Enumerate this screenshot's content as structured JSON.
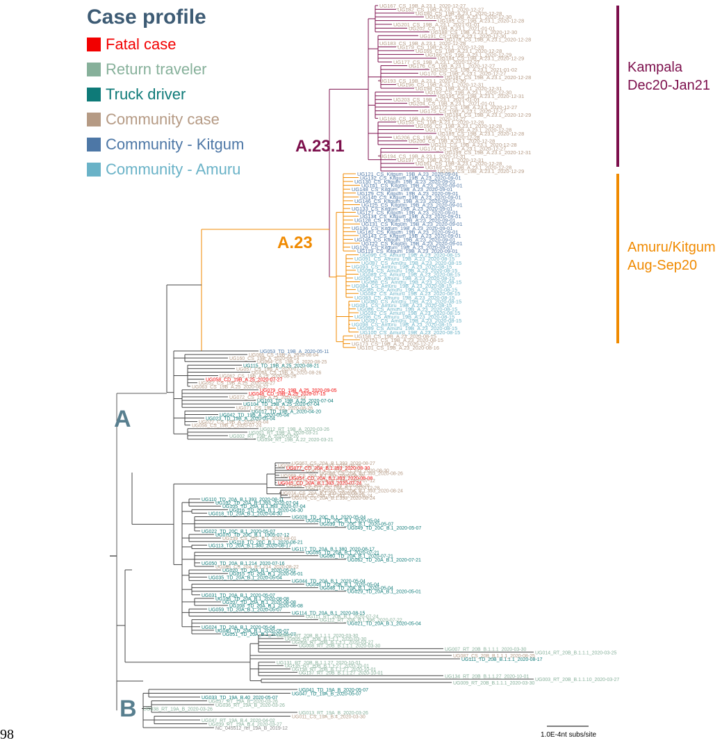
{
  "page_number": "98",
  "legend": {
    "title": "Case profile",
    "items": [
      {
        "label": "Fatal case",
        "color": "#f20000"
      },
      {
        "label": "Return traveler",
        "color": "#86b09a"
      },
      {
        "label": "Truck driver",
        "color": "#0e7a78"
      },
      {
        "label": "Community case",
        "color": "#b59a84"
      },
      {
        "label": "Community - Kitgum",
        "color": "#4d77a6"
      },
      {
        "label": "Community - Amuru",
        "color": "#69b2c7"
      }
    ]
  },
  "colors": {
    "a231_lineage": "#7c0f4c",
    "a23_lineage": "#f08a00",
    "base_branch": "#5a5a5a",
    "clade_label": "#587f8f"
  },
  "clade_labels": {
    "a231": "A.23.1",
    "a23": "A.23",
    "a": "A",
    "b": "B"
  },
  "region_labels": {
    "kampala": [
      "Kampala",
      "Dec20-Jan21"
    ],
    "amuru_kitgum": [
      "Amuru/Kitgum",
      "Aug-Sep20"
    ]
  },
  "scale_bar": {
    "label": "1.0E-4nt subs/site"
  },
  "tips": {
    "a231": [
      [
        "UG167_CS_19B_A.23.1_2020-12-27",
        "community"
      ],
      [
        "UG182_CS_19B_A.23.1_2020-12-27",
        "community"
      ],
      [
        "UG180_CS_19B_A.23.1_2020-12-28",
        "community"
      ],
      [
        "UG190_CS_19B_A.23.1_2020-12-30",
        "community"
      ],
      [
        "UG185_CS_19B_A.23.1_2020-12-28",
        "community"
      ],
      [
        "UG201_CS_19B_A.23.1_2021-01-01",
        "community"
      ],
      [
        "UG202_CS_19B_A.23.1_2021-01-01",
        "community"
      ],
      [
        "UG188_CS_19B_A.23.1_2020-12-30",
        "community"
      ],
      [
        "UG191_CS_19B_A.23.1_2020-12-30",
        "community"
      ],
      [
        "UG178_CS_19B_A.23.1_2020-12-28",
        "community"
      ],
      [
        "UG183_CS_19B_A.23.1_2020-12-28",
        "community"
      ],
      [
        "UG179_CS_19B_A.23.1_2020-12-28",
        "community"
      ],
      [
        "UG165_CS_19B_A.23.1_2020-12-28",
        "community"
      ],
      [
        "UG186_CS_19B_A.23.1_2020-12-29",
        "community"
      ],
      [
        "UG184_CS_19B_A.23.1_2020-12-29",
        "community"
      ],
      [
        "UG177_CS_19B_A.23.1_2020-12-27",
        "community"
      ],
      [
        "UG176_CS_19B_A.23.1_2020-12-27",
        "community"
      ],
      [
        "UG205_CS_19B_A.23.1_2021-01-02",
        "community"
      ],
      [
        "UG170_CS_19B_A.23.1_2020-12-27",
        "community"
      ],
      [
        "UG181_CS_19B_A.23.1_2020-12-28",
        "community"
      ],
      [
        "UG193_CS_19B_A.23.1_2020-12-30",
        "community"
      ],
      [
        "UG196_CS_19B_A.23.1_2020-12-31",
        "community"
      ],
      [
        "UG198_CS_19B_A.23.1_2020-12-31",
        "community"
      ],
      [
        "UG192_CS_19B_A.23.1_2020-12-30",
        "community"
      ],
      [
        "UG195_CS_19B_A.23.1_2020-12-31",
        "community"
      ],
      [
        "UG203_CS_19B_A.23.1_2021-01-01",
        "community"
      ],
      [
        "UG204_CS_19B_A.23.1_2021-01-01",
        "community"
      ],
      [
        "UG172_CS_19B_A.23.1_2020-12-27",
        "community"
      ],
      [
        "UG175_CS_19B_A.23.1_2020-12-27",
        "community"
      ],
      [
        "UG184_CS_19B_A.23.1_2020-12-29",
        "community"
      ],
      [
        "UG168_CS_19B_A.23.1_2020-12-27",
        "community"
      ],
      [
        "UG155_CS_19B_A.23.1_2020-12-26",
        "community"
      ],
      [
        "UG166_CS_19B_A.23.1_2020-12-28",
        "community"
      ],
      [
        "UG171_CS_19B_A.23.1_2020-12-28",
        "community"
      ],
      [
        "UG189_CS_19B_A.23.1_2020-12-28",
        "community"
      ],
      [
        "UG206_CS_19B_A.23.1_2020-12-28",
        "community"
      ],
      [
        "UG200_CS_19B_A.23.1_2020-12-28",
        "community"
      ],
      [
        "UG211_CS_19B_A.23.1_2020-12-28",
        "community"
      ],
      [
        "UG174_CS_19B_A.23.1_2020-12-27",
        "community"
      ],
      [
        "UG199_CS_19B_A.23.1_2020-12-31",
        "community"
      ],
      [
        "UG194_CS_19B_A.23.1_2020-12-31",
        "community"
      ],
      [
        "UG197_CS_19B_A.23.1_2020-12-31",
        "community"
      ],
      [
        "UG161_CS_19B_A.23.1_2020-12-28",
        "community"
      ],
      [
        "UG169_CS_19B_A.23.1_2020-12-28",
        "community"
      ],
      [
        "UG209_CS_19B_A.23.1_2020-12-29",
        "community"
      ]
    ],
    "a23": [
      [
        "UG121_CS_Kitgum_19B_A.23_2020-09-01",
        "kitgum"
      ],
      [
        "UG132_CS_Kitgum_19B_A.23_2020-09-01",
        "kitgum"
      ],
      [
        "UG130_CS_Kitgum_19B_A.23_2020-09-01",
        "kitgum"
      ],
      [
        "UG141_CS_Kitgum_19B_A.23_2020-09-01",
        "kitgum"
      ],
      [
        "UG148_CS_Kitgum_19B_A.23_2020-09-01",
        "kitgum"
      ],
      [
        "UG129_CS_Kitgum_19B_A.23_2020-09-01",
        "kitgum"
      ],
      [
        "UG140_CS_Kitgum_19B_A.23_2020-09-01",
        "kitgum"
      ],
      [
        "UG146_CS_Kitgum_19B_A.23_2020-09-01",
        "kitgum"
      ],
      [
        "UG125_CS_Kitgum_19B_A.23_2020-09-01",
        "kitgum"
      ],
      [
        "UG133_CS_Kitgum_19B_A.23_2020-09-01",
        "kitgum"
      ],
      [
        "UG127_CS_Kitgum_19B_A.23_2020-09-01",
        "kitgum"
      ],
      [
        "UG134_CS_Kitgum_19B_A.23_2020-09-01",
        "kitgum"
      ],
      [
        "UG128_CS_Kitgum_19B_A.23_2020-09-01",
        "kitgum"
      ],
      [
        "UG131_CS_Kitgum_19B_A.23_2020-09-01",
        "kitgum"
      ],
      [
        "UG136_CS_Kitgum_19B_A.23_2020-09-01",
        "kitgum"
      ],
      [
        "UG142_CS_Kitgum_19B_A.23_2020-09-01",
        "kitgum"
      ],
      [
        "UG143_CS_Kitgum_19B_A.23_2020-09-01",
        "kitgum"
      ],
      [
        "UG145_CS_Kitgum_19B_A.23_2020-09-01",
        "kitgum"
      ],
      [
        "UG122_CS_Kitgum_19B_A.23_2020-09-01",
        "kitgum"
      ],
      [
        "UG126_CS_Kitgum_19B_A.23_2020-09-01",
        "kitgum"
      ],
      [
        "UG119_CS_Kitgum_19B_A.23_2020-09-01",
        "kitgum"
      ],
      [
        "UG090_CS_Amuru_19B_A.23_2020-08-15",
        "amuru"
      ],
      [
        "UG091_CS_Amuru_19B_A.23_2020-08-15",
        "amuru"
      ],
      [
        "UG087_CS_Amuru_19B_A.23_2020-08-15",
        "amuru"
      ],
      [
        "UG093_CS_Amuru_19B_A.23_2020-08-15",
        "amuru"
      ],
      [
        "UG094_CS_Amuru_19B_A.23_2020-08-15",
        "amuru"
      ],
      [
        "UG089_CS_Amuru_19B_A.23_2020-08-15",
        "amuru"
      ],
      [
        "UG095_CS_Amuru_19B_A.23_2020-08-15",
        "amuru"
      ],
      [
        "UG088_CS_Amuru_19B_A.23_2020-08-15",
        "amuru"
      ],
      [
        "UG084_CS_Amuru_19B_A.23_2020-08-15",
        "amuru"
      ],
      [
        "UG085_CS_Amuru_19B_A.23_2020-08-15",
        "amuru"
      ],
      [
        "UG082_CS_Amuru_19B_A.23_2020-08-15",
        "amuru"
      ],
      [
        "UG083_CS_Amuru_19B_A.23_2020-08-15",
        "amuru"
      ],
      [
        "UG080_CS_Amuru_19B_A.23_2020-08-15",
        "amuru"
      ],
      [
        "UG081_CS_Amuru_19B_A.23_2020-08-15",
        "amuru"
      ],
      [
        "UG086_CS_Amuru_19B_A.23_2020-08-15",
        "amuru"
      ],
      [
        "UG092_CS_Amuru_19B_A.23_2020-08-15",
        "amuru"
      ],
      [
        "UG096_CS_Amuru_19B_A.23_2020-08-15",
        "amuru"
      ],
      [
        "UG097_CS_Amuru_19B_A.23_2020-08-15",
        "amuru"
      ],
      [
        "UG098_CS_Amuru_19B_A.23_2020-08-15",
        "amuru"
      ],
      [
        "UG099_CS_Amuru_19B_A.23_2020-08-15",
        "amuru"
      ],
      [
        "UG100_CS_Amuru_19B_A.23_2020-08-15",
        "amuru"
      ],
      [
        "UG158_CS_19B_A.23_2020-08-15",
        "community"
      ],
      [
        "UG151_CS_19B_A.23_2020-08-15",
        "community"
      ],
      [
        "UG173_CS_19B_A.23_2020-12-27",
        "community"
      ],
      [
        "UG101_CS_19B_A.23_2020-08-16",
        "community"
      ]
    ],
    "a_other": [
      [
        "UG053_TD_19B_A_2020-05-11",
        "kitgum"
      ],
      [
        "UG066_CS_19B_A_2020-06-04",
        "community"
      ],
      [
        "UG160_CS_19B_A_2020-06-14",
        "community"
      ],
      [
        "UG064_CS_19B_A_2020-08-25",
        "community"
      ],
      [
        "UG115_TD_19B_A.25_2020-08-21",
        "truck"
      ],
      [
        "UG057_CS_19B_A_2020-07-24",
        "community"
      ],
      [
        "UG064_CS_19B_A_2020-08-26",
        "community"
      ],
      [
        "UG062_CS_19B_A.25_2020-08-26",
        "community"
      ],
      [
        "UG058_CD_19B_A.25_2020-07-27",
        "fatal"
      ],
      [
        "UG052_CS_19B_A.25_2020-08-27",
        "community"
      ],
      [
        "UG063_CS_19B_A.25_2020-08-27",
        "community"
      ],
      [
        "UG079_CD_19B_A.25_2020-09-05",
        "fatal"
      ],
      [
        "UG048_CD_19B_A.25_2020-07-15",
        "fatal"
      ],
      [
        "UG072_CS_19B_A.25_2020-08-19",
        "community"
      ],
      [
        "UG103_TD_19B_A.25_2020-07-04",
        "truck"
      ],
      [
        "UG104_TD_19B_A.25_2020-07-04",
        "truck"
      ],
      [
        "UG071_CS_19B_A.25_2020-08-26",
        "community"
      ],
      [
        "UG017_TD_19B_A_2020-04-20",
        "truck"
      ],
      [
        "UG042_TD_19B_A_2020-05-04",
        "truck"
      ],
      [
        "UG023_TD_19B_A_2020-05-04",
        "truck"
      ],
      [
        "UG027_CS_19B_A_2020-05-04",
        "community"
      ],
      [
        "UG056_CS_19B_A_2020-07-24",
        "community"
      ],
      [
        "UG012_RT_19B_A_2020-03-26",
        "traveler"
      ],
      [
        "UG001_RT_19B_A_2020-03-21",
        "traveler"
      ],
      [
        "UG002_RT_19B_A_2020-03-26",
        "traveler"
      ],
      [
        "UG034_RT_19B_A.22_2020-03-21",
        "traveler"
      ]
    ],
    "b1393": [
      [
        "UG067_CS_20A_B.1.393_2020-08-27",
        "community"
      ],
      [
        "UG065_CS_20A_B.1.393_2020-08-26",
        "community"
      ],
      [
        "UG077_CD_20A_B.1.393_2020-08-30",
        "fatal"
      ],
      [
        "UG078_CS_20A_B.1.393_2020-08-30",
        "community"
      ],
      [
        "UG068_CS_20A_B.1.393_2020-08-26",
        "community"
      ],
      [
        "UG069_CS_20A_B.1.393_2020-08-26",
        "community"
      ],
      [
        "UG054_CD_20A_B.1.393_2020-08-08",
        "fatal"
      ],
      [
        "UG070_CS_20A_B.1.393_1905-07-12",
        "community"
      ],
      [
        "UG045_CD_20A_B.1.393_2020-07-24",
        "fatal"
      ],
      [
        "UG068_CS_20A_B.1.393_2020-08-26",
        "community"
      ],
      [
        "UG212_CS_19A_B.1_2020-12-28",
        "community"
      ],
      [
        "UG073_CS_20A_B.1.393_2020-08-24",
        "community"
      ],
      [
        "UG074_CS_20A_B.1.393_2020-08-24",
        "community"
      ],
      [
        "UG075_CS_20A_B.1.393_2020-08-24",
        "community"
      ],
      [
        "UG076_CS_20A_B.1.393_2020-08-24",
        "community"
      ]
    ],
    "b1": [
      [
        "UG110_TD_20A_B.1.393_2020-08-11",
        "truck"
      ],
      [
        "UG102_TD_20A_B.1.393_2020-07-04",
        "truck"
      ],
      [
        "UG105_TD_20A_B.1.393_2020-07-04",
        "truck"
      ],
      [
        "UG016_TD_20A_B.1_2020-04-30",
        "truck"
      ],
      [
        "UG018_TD_20A_B.1_2020-04-30",
        "truck"
      ],
      [
        "UG028_TD_20C_B.1_2020-05-04",
        "truck"
      ],
      [
        "UG043_TD_20C_B.1_2020-05-04",
        "truck"
      ],
      [
        "UG039_TD_20C_B.1_2020-05-07",
        "truck"
      ],
      [
        "UG049_TD_20C_B.1_2020-05-07",
        "truck"
      ],
      [
        "UG022_TD_20C_B.1_2020-05-07",
        "truck"
      ],
      [
        "UG070_TD_20C_B.1_1905-07-12",
        "truck"
      ],
      [
        "UG139_CS_20C_B.1_2020-09-01",
        "community"
      ],
      [
        "UG118_TD_20C_B.1_2020-08-21",
        "truck"
      ],
      [
        "UG113_TD_20A_B.1.380_2020-08-17",
        "truck"
      ],
      [
        "UG117_TD_20A_B.1.380_2020-08-17",
        "truck"
      ],
      [
        "UG055_TD_20A_B.1_2020-07-21",
        "truck"
      ],
      [
        "UG060_TD_20A_B.1_2020-07-21",
        "truck"
      ],
      [
        "UG062_TD_20A_B.1_2020-07-21",
        "truck"
      ],
      [
        "UG050_TD_20A_B.1.214_2020-07-16",
        "truck"
      ],
      [
        "UG086_CS_20A_B.1.214_2020-08-22",
        "community"
      ],
      [
        "UG020_TD_20A_B.1_2020-05-01",
        "truck"
      ],
      [
        "UG015_TD_20A_B.1_2020-05-01",
        "truck"
      ],
      [
        "UG035_TD_20A_B.1_2020-05-04",
        "truck"
      ],
      [
        "UG044_TD_20A_B.1_2020-05-04",
        "truck"
      ],
      [
        "UG046_TD_20A_B.1_2020-05-04",
        "truck"
      ],
      [
        "UG048_TD_20A_B.1_2020-05-04",
        "truck"
      ],
      [
        "UG029_TD_20A_B.1_2020-05-01",
        "truck"
      ],
      [
        "UG031_TD_20A_B.1_2020-05-07",
        "truck"
      ],
      [
        "UG106_TD_20A_B.1_2020-08-08",
        "truck"
      ],
      [
        "UG107_TD_20A_B.1_2020-08-08",
        "truck"
      ],
      [
        "UG108_TD_20A_B.1_2020-08-08",
        "truck"
      ],
      [
        "UG059_TD_20A_B.1_2020-05-07",
        "truck"
      ],
      [
        "UG114_TD_20A_B.1_2020-08-15",
        "truck"
      ],
      [
        "UG111_RT_20A_B.1_2020-07-24",
        "traveler"
      ],
      [
        "UG112_RT_20A_B.1.396_2020-07-22",
        "traveler"
      ],
      [
        "UG021_TD_20A_B.1_2020-05-04",
        "truck"
      ],
      [
        "UG024_TD_20A_B.1_2020-05-04",
        "truck"
      ],
      [
        "UG040_TD_20A_B.1_2020-05-07",
        "truck"
      ],
      [
        "UG051_TD_20A_B.1_2020-05-07",
        "truck"
      ]
    ],
    "b111": [
      [
        "UG010_RT_20B_B.1.1.1_2020-03-30",
        "traveler"
      ],
      [
        "UG005_RT_20B_B.1.1.1_2020-03-30",
        "traveler"
      ],
      [
        "UG006_RT_20B_B.1.1.1_2020-03-27",
        "traveler"
      ],
      [
        "UG008_RT_20B_B.1.1.1_2020-03-30",
        "traveler"
      ],
      [
        "UG007_RT_20B_B.1.1.1_2020-03-30",
        "traveler"
      ],
      [
        "UG014_RT_20B_B.1.1.1_2020-03-25",
        "traveler"
      ],
      [
        "UG087_CS_20B_B.1.1.1_2020-08-25",
        "community"
      ],
      [
        "UG111_TD_20B_B.1.1.1_2020-08-17",
        "truck"
      ],
      [
        "UG131_RT_20B_B.1.1.27_2020-10-01",
        "traveler"
      ],
      [
        "UG135_RT_20B_B.1.1.27_2020-10-01",
        "traveler"
      ],
      [
        "UG138_RT_20B_B.1.1.27_2020-10-01",
        "traveler"
      ],
      [
        "UG137_RT_20B_B.1.1.27_2020-10-01",
        "traveler"
      ],
      [
        "UG134_RT_20B_B.1.1.27_2020-10-01",
        "traveler"
      ],
      [
        "UG003_RT_20B_B.1.1.10_2020-03-27",
        "traveler"
      ],
      [
        "UG009_RT_20B_B.1.1.1_2020-03-30",
        "traveler"
      ]
    ],
    "b_base": [
      [
        "UG041_TD_19A_B_2020-05-07",
        "truck"
      ],
      [
        "UG047_TD_19A_B_2020-05-07",
        "truck"
      ],
      [
        "UG033_TD_19A_B.40_2020-05-07",
        "truck"
      ],
      [
        "UG037_RT_19A_B_2020-03-26",
        "traveler"
      ],
      [
        "UG036_RT_19A_B_2020-03-26",
        "traveler"
      ],
      [
        "UG038_RT_19A_B_2020-03-26",
        "traveler"
      ],
      [
        "UG013_RT_19A_B_2020-03-26",
        "traveler"
      ],
      [
        "UG011_CS_19A_B.4_2020-03-30",
        "community"
      ],
      [
        "UG047_RT_19A_B.4_2020-04-02",
        "traveler"
      ],
      [
        "UG039_RT_19A_B.4_2020-03-27",
        "traveler"
      ],
      [
        "NC_045512_ref_19A_B_2019-12",
        "reference"
      ]
    ]
  }
}
